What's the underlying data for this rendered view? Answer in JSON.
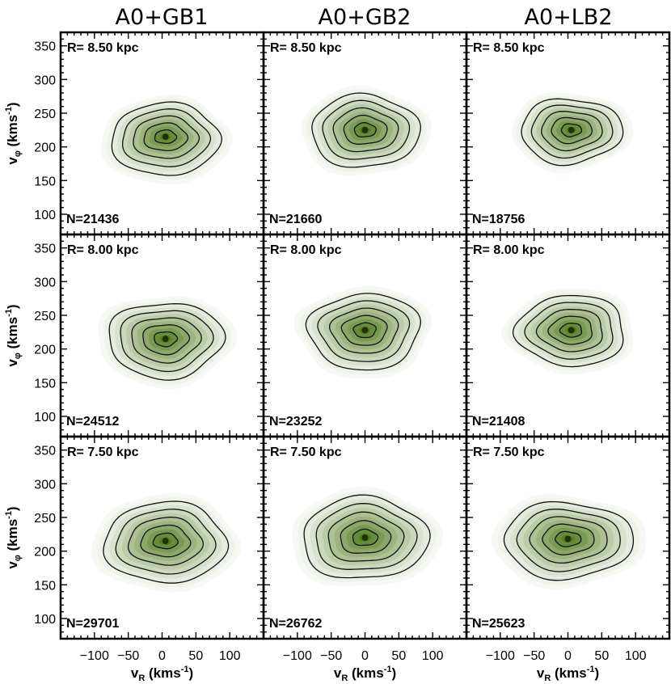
{
  "chart_data": {
    "type": "contour-density-grid",
    "column_titles": [
      "A0+GB1",
      "A0+GB2",
      "A0+LB2"
    ],
    "row_radii": [
      "R= 8.50 kpc",
      "R= 8.00 kpc",
      "R= 7.50 kpc"
    ],
    "xlabel": "v",
    "xlabel_sub": "R",
    "xlabel_units": " (kms",
    "xlabel_exp": "-1",
    "ylabel": "v",
    "ylabel_sub": "φ",
    "ylabel_units": " (kms",
    "ylabel_exp": "-1",
    "xlim": [
      -150,
      150
    ],
    "ylim": [
      70,
      370
    ],
    "xticks": [
      -100,
      -50,
      0,
      50,
      100
    ],
    "xtick_labels": [
      "−100",
      "−50",
      "0",
      "50",
      "100"
    ],
    "yticks": [
      100,
      150,
      200,
      250,
      300,
      350
    ],
    "ytick_labels": [
      "100",
      "150",
      "200",
      "250",
      "300",
      "350"
    ],
    "density_color": "#4f7a1c",
    "contour_color": "#111111",
    "panels": [
      {
        "model": "A0+GB1",
        "R": "R= 8.50 kpc",
        "N": "N=21436",
        "peak": [
          5,
          215
        ],
        "spread": [
          62,
          38
        ],
        "tail": [
          -10,
          130
        ]
      },
      {
        "model": "A0+GB2",
        "R": "R= 8.50 kpc",
        "N": "N=21660",
        "peak": [
          0,
          225
        ],
        "spread": [
          62,
          40
        ],
        "tail": [
          0,
          150
        ]
      },
      {
        "model": "A0+LB2",
        "R": "R= 8.50 kpc",
        "N": "N=18756",
        "peak": [
          5,
          225
        ],
        "spread": [
          58,
          36
        ],
        "tail": [
          -15,
          160
        ]
      },
      {
        "model": "A0+GB1",
        "R": "R= 8.00 kpc",
        "N": "N=24512",
        "peak": [
          5,
          215
        ],
        "spread": [
          66,
          42
        ],
        "tail": [
          -5,
          140
        ]
      },
      {
        "model": "A0+GB2",
        "R": "R= 8.00 kpc",
        "N": "N=23252",
        "peak": [
          0,
          228
        ],
        "spread": [
          64,
          42
        ],
        "tail": [
          -30,
          150
        ]
      },
      {
        "model": "A0+LB2",
        "R": "R= 8.00 kpc",
        "N": "N=21408",
        "peak": [
          5,
          228
        ],
        "spread": [
          62,
          40
        ],
        "tail": [
          10,
          160
        ]
      },
      {
        "model": "A0+GB1",
        "R": "R= 7.50 kpc",
        "N": "N=29701",
        "peak": [
          5,
          215
        ],
        "spread": [
          70,
          44
        ],
        "tail": [
          -5,
          130
        ]
      },
      {
        "model": "A0+GB2",
        "R": "R= 7.50 kpc",
        "N": "N=26762",
        "peak": [
          0,
          220
        ],
        "spread": [
          72,
          46
        ],
        "tail": [
          -20,
          140
        ]
      },
      {
        "model": "A0+LB2",
        "R": "R= 7.50 kpc",
        "N": "N=25623",
        "peak": [
          0,
          218
        ],
        "spread": [
          74,
          42
        ],
        "tail": [
          0,
          140
        ]
      }
    ],
    "contour_levels": [
      0.1,
      0.3,
      0.5,
      0.7,
      0.9
    ]
  }
}
